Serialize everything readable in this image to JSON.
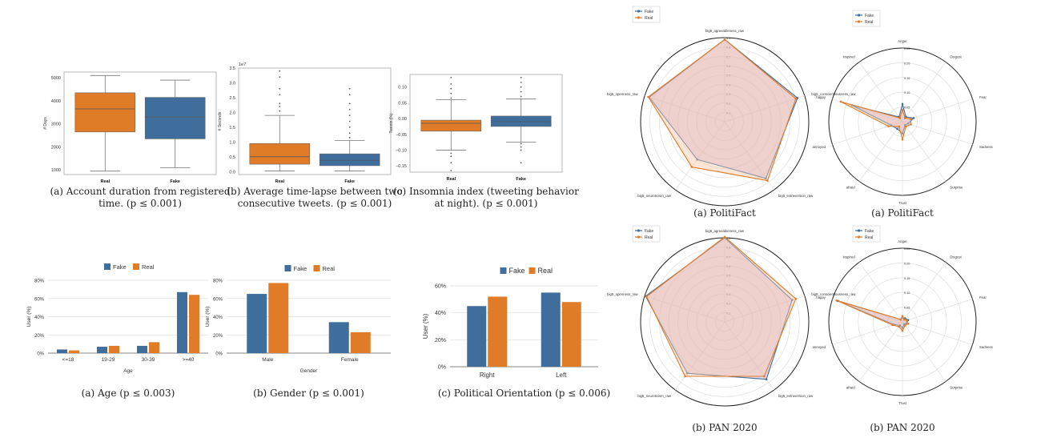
{
  "colors": {
    "fake": "#3f6d9c",
    "real": "#e07b28",
    "radar_fill": "#c9a6cf",
    "grid": "#dddddd",
    "axis": "#555555"
  },
  "legend": {
    "fake": "Fake",
    "real": "Real"
  },
  "chart_data": [
    {
      "id": "box1",
      "type": "box",
      "categories": [
        "Real",
        "Fake"
      ],
      "ylabel": "# Days",
      "yticks": [
        "1000",
        "2000",
        "3000",
        "4000",
        "5000"
      ],
      "ylim": [
        800,
        5250
      ],
      "boxes": [
        {
          "min": 950,
          "q1": 2650,
          "median": 3650,
          "q3": 4350,
          "max": 5100,
          "outliers": []
        },
        {
          "min": 1100,
          "q1": 2350,
          "median": 3300,
          "q3": 4150,
          "max": 4900,
          "outliers": []
        }
      ],
      "caption_lines": [
        "(a) Account duration from registered",
        "time. (p ≤ 0.001)"
      ]
    },
    {
      "id": "box2",
      "type": "box",
      "categories": [
        "Real",
        "Fake"
      ],
      "ylabel": "# Seconds",
      "exponent": "1e7",
      "yticks": [
        "0.0",
        "0.5",
        "1.0",
        "1.5",
        "2.0",
        "2.5",
        "3.0",
        "3.5"
      ],
      "ylim": [
        -0.1,
        3.5
      ],
      "boxes": [
        {
          "min": 0.02,
          "q1": 0.25,
          "median": 0.5,
          "q3": 0.95,
          "max": 1.9,
          "outliers": [
            2.05,
            2.2,
            2.3,
            2.6,
            2.8,
            3.2,
            3.4
          ]
        },
        {
          "min": 0.02,
          "q1": 0.2,
          "median": 0.38,
          "q3": 0.6,
          "max": 1.05,
          "outliers": [
            1.15,
            1.3,
            1.5,
            1.7,
            1.9,
            2.1,
            2.3,
            2.6,
            2.8
          ]
        }
      ],
      "caption_lines": [
        "(b) Average time-lapse between two",
        "consecutive tweets. (p ≤ 0.001)"
      ]
    },
    {
      "id": "box3",
      "type": "box",
      "categories": [
        "Real",
        "Fake"
      ],
      "ylabel": "Tweets (%)",
      "yticks": [
        "−0.15",
        "−0.10",
        "−0.05",
        "0.00",
        "0.05",
        "0.10"
      ],
      "ylim": [
        -0.17,
        0.14
      ],
      "boxes": [
        {
          "min": -0.1,
          "q1": -0.04,
          "median": -0.015,
          "q3": -0.005,
          "max": 0.06,
          "outliers": [
            0.065,
            0.08,
            0.095,
            0.11,
            0.13,
            -0.11,
            -0.12,
            -0.14,
            -0.165
          ]
        },
        {
          "min": -0.075,
          "q1": -0.025,
          "median": -0.01,
          "q3": 0.008,
          "max": 0.062,
          "outliers": [
            0.07,
            0.085,
            0.1,
            0.115,
            0.13,
            -0.08,
            -0.09,
            -0.1,
            -0.14
          ]
        }
      ],
      "caption_lines": [
        "(c) Insomnia index (tweeting behavior",
        "at night). (p ≤ 0.001)"
      ]
    },
    {
      "id": "bar1",
      "type": "bar",
      "xlabel": "Age",
      "ylabel": "User (%)",
      "categories": [
        "<=18",
        "19-29",
        "30-39",
        ">=40"
      ],
      "yticks": [
        "0%",
        "20%",
        "40%",
        "60%",
        "80%"
      ],
      "ylim": [
        0,
        80
      ],
      "series": [
        {
          "name": "Fake",
          "values": [
            4,
            7,
            8,
            67
          ]
        },
        {
          "name": "Real",
          "values": [
            3,
            8,
            12,
            64
          ]
        }
      ],
      "caption_lines": [
        "(a) Age (p ≤ 0.003)"
      ]
    },
    {
      "id": "bar2",
      "type": "bar",
      "xlabel": "Gender",
      "ylabel": "User (%)",
      "categories": [
        "Male",
        "Female"
      ],
      "yticks": [
        "0%",
        "20%",
        "40%",
        "60%",
        "80%"
      ],
      "ylim": [
        0,
        80
      ],
      "series": [
        {
          "name": "Fake",
          "values": [
            65,
            34
          ]
        },
        {
          "name": "Real",
          "values": [
            77,
            23
          ]
        }
      ],
      "caption_lines": [
        "(b) Gender (p ≤ 0.001)"
      ]
    },
    {
      "id": "bar3",
      "type": "bar",
      "xlabel": "",
      "ylabel": "User (%)",
      "categories": [
        "Right",
        "Left"
      ],
      "yticks": [
        "0%",
        "20%",
        "40%",
        "60%"
      ],
      "ylim": [
        0,
        60
      ],
      "series": [
        {
          "name": "Fake",
          "values": [
            45,
            55
          ]
        },
        {
          "name": "Real",
          "values": [
            52,
            48
          ]
        }
      ],
      "caption_lines": [
        "(c) Political Orientation (p ≤ 0.006)"
      ]
    },
    {
      "id": "radar1",
      "type": "radar",
      "rmax": 0.9,
      "rlabels": [
        "0.1",
        "0.2",
        "0.3",
        "0.4",
        "0.5",
        "0.6",
        "0.7",
        "0.8",
        "0.9"
      ],
      "axes": [
        "big5_agreeableness_raw",
        "big5_conscientiousness_raw",
        "big5_extraversion_raw",
        "big5_neuroticism_raw",
        "big5_openness_raw"
      ],
      "series": [
        {
          "name": "Fake",
          "values": [
            0.88,
            0.82,
            0.75,
            0.5,
            0.85
          ]
        },
        {
          "name": "Real",
          "values": [
            0.88,
            0.8,
            0.78,
            0.6,
            0.86
          ]
        }
      ],
      "caption_lines": [
        "(a) PolitiFact"
      ]
    },
    {
      "id": "radar2",
      "type": "radar",
      "rmax": 0.25,
      "rlabels": [
        "0.05",
        "0.10",
        "0.15",
        "0.20",
        "0.25"
      ],
      "axes": [
        "Anger",
        "Disgust",
        "Fear",
        "Sadness",
        "Surprise",
        "Trust",
        "afraid",
        "annoyed",
        "happy",
        "inspired"
      ],
      "series": [
        {
          "name": "Fake",
          "values": [
            0.06,
            0.02,
            0.04,
            0.02,
            0.015,
            0.04,
            0.03,
            0.04,
            0.18,
            0.02
          ]
        },
        {
          "name": "Real",
          "values": [
            0.04,
            0.015,
            0.03,
            0.03,
            0.02,
            0.06,
            0.02,
            0.05,
            0.22,
            0.015
          ]
        }
      ],
      "caption_lines": [
        "(a) PolitiFact"
      ]
    },
    {
      "id": "radar3",
      "type": "radar",
      "rmax": 0.9,
      "rlabels": [
        "0.1",
        "0.2",
        "0.3",
        "0.4",
        "0.5",
        "0.6",
        "0.7",
        "0.8",
        "0.9"
      ],
      "axes": [
        "big5_agreeableness_raw",
        "big5_conscientiousness_raw",
        "big5_extraversion_raw",
        "big5_neuroticism_raw",
        "big5_openness_raw"
      ],
      "series": [
        {
          "name": "Fake",
          "values": [
            0.9,
            0.76,
            0.76,
            0.68,
            0.89
          ]
        },
        {
          "name": "Real",
          "values": [
            0.91,
            0.8,
            0.72,
            0.72,
            0.88
          ]
        }
      ],
      "caption_lines": [
        "(b) PAN 2020"
      ]
    },
    {
      "id": "radar4",
      "type": "radar",
      "rmax": 0.25,
      "rlabels": [
        "0.05",
        "0.10",
        "0.15",
        "0.20",
        "0.25"
      ],
      "axes": [
        "Anger",
        "Disgust",
        "Fear",
        "Sadness",
        "Surprise",
        "Trust",
        "afraid",
        "annoyed",
        "happy",
        "inspired"
      ],
      "series": [
        {
          "name": "Fake",
          "values": [
            0.015,
            0.015,
            0.02,
            0.015,
            0.01,
            0.02,
            0.015,
            0.03,
            0.23,
            0.01
          ]
        },
        {
          "name": "Real",
          "values": [
            0.02,
            0.01,
            0.015,
            0.02,
            0.015,
            0.03,
            0.02,
            0.035,
            0.235,
            0.01
          ]
        }
      ],
      "caption_lines": [
        "(b) PAN 2020"
      ]
    }
  ]
}
